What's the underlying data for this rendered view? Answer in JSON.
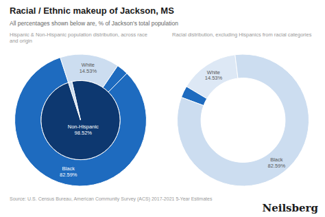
{
  "title": "Racial / Ethnic makeup of Jackson, MS",
  "subtitle": "All percentages shown below are, % of Jackson's total population",
  "annotations": [
    "Source: U.S. Census Bureau, American Community Survey (ACS) 2017-2021 5-Year Estimates",
    "Neilsberg"
  ],
  "chart_data": [
    {
      "type": "pie",
      "title": "Hispanic & Non-Hispanic population distribution, across race and origin",
      "data_labels": true,
      "series": [
        {
          "categories": [
            "Black",
            null,
            "White"
          ],
          "values": [
            82.59,
            2.88,
            14.53
          ],
          "value_labels": [
            "82.59%",
            null,
            "14.53%"
          ],
          "colors": [
            "#1e6bbf",
            "#1e6bbf",
            "#ccddf0"
          ]
        },
        {
          "categories": [
            "Non-Hispanic",
            null
          ],
          "values": [
            98.52,
            1.48
          ],
          "value_labels": [
            "98.52%",
            null
          ],
          "colors": [
            "#0d3870",
            "#ccddf0"
          ]
        }
      ]
    },
    {
      "type": "donut",
      "title": "Racial distribution, excluding Hispanics from racial categories",
      "data_labels": true,
      "series": [
        {
          "categories": [
            "White",
            null,
            "Black"
          ],
          "values": [
            14.53,
            2.88,
            82.59
          ],
          "value_labels": [
            "14.53%",
            null,
            "82.59%"
          ],
          "colors": [
            "#dde8f5",
            "#1e6bbf",
            "#ccddf0"
          ]
        }
      ]
    }
  ]
}
